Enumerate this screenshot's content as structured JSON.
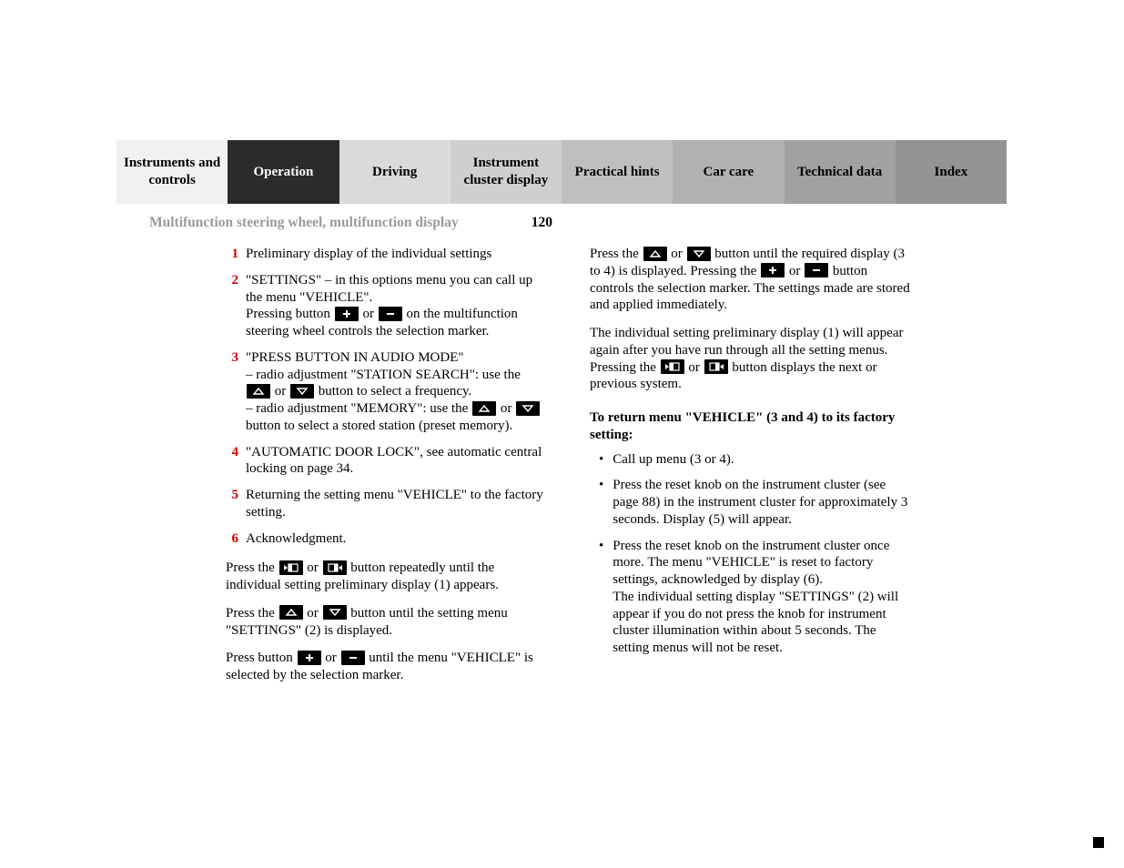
{
  "tabs": [
    {
      "label": "Instruments and controls",
      "bg": "#f1f1f1"
    },
    {
      "label": "Operation",
      "bg": "#2b2b2b",
      "text_color": "#ffffff"
    },
    {
      "label": "Driving",
      "bg": "#dadada"
    },
    {
      "label": "Instrument cluster display",
      "bg": "#cfcfcf"
    },
    {
      "label": "Practical hints",
      "bg": "#bfbfbf"
    },
    {
      "label": "Car care",
      "bg": "#b1b1b1"
    },
    {
      "label": "Technical data",
      "bg": "#a1a1a1"
    },
    {
      "label": "Index",
      "bg": "#949494"
    }
  ],
  "section_title": "Multifunction steering wheel, multifunction display",
  "page_number": "120",
  "accent_color": "#d40000",
  "left_list": [
    {
      "n": "1",
      "body": "Preliminary display of the individual settings"
    },
    {
      "n": "2",
      "body_html": "\"SETTINGS\" – in this options menu you can call up the menu \"VEHICLE\".<br>Pressing button {plus} or {minus} on the multifunction steering wheel controls the selection marker."
    },
    {
      "n": "3",
      "body_html": "\"PRESS BUTTON IN AUDIO MODE\"<br>– radio adjustment \"STATION SEARCH\": use the {up} or {down} button to select a frequency.<br>– radio adjustment \"MEMORY\": use the {up} or {down} button to select a stored station (preset memory)."
    },
    {
      "n": "4",
      "body": "\"AUTOMATIC DOOR LOCK\", see automatic central locking on page 34."
    },
    {
      "n": "5",
      "body": "Returning the setting menu \"VEHICLE\" to the factory setting."
    },
    {
      "n": "6",
      "body": "Acknowledgment."
    }
  ],
  "left_paras": [
    "Press the {prev} or {next} button repeatedly until the individual setting preliminary display (1) appears.",
    "Press the {up} or {down} button until the setting menu \"SETTINGS\" (2) is displayed.",
    "Press button {plus} or {minus} until the menu \"VEHICLE\" is selected by the selection marker."
  ],
  "right_paras": [
    "Press the {up} or {down} button until the required display (3 to 4) is displayed. Pressing the {plus} or {minus} button controls the selection marker. The settings made are stored and applied immediately.",
    "The individual setting preliminary display (1) will appear again after you have run through all the setting menus. Pressing the {prev} or {next} button displays the next or previous system."
  ],
  "right_bold": "To return menu \"VEHICLE\" (3 and 4) to its factory setting:",
  "right_bullets": [
    "Call up menu (3 or 4).",
    "Press the reset knob on the instrument cluster (see page 88) in the instrument cluster for approximately 3 seconds. Display (5) will appear.",
    "Press the reset knob on the instrument cluster once more. The menu \"VEHICLE\"  is reset to factory settings, acknowledged by display (6).\nThe individual setting display \"SETTINGS\" (2) will appear if you do not press the knob for instrument cluster illumination within about 5 seconds. The setting menus will not be reset."
  ],
  "icons": {
    "plus": "plus-icon",
    "minus": "minus-icon",
    "up": "up-icon",
    "down": "down-icon",
    "prev": "page-prev-icon",
    "next": "page-next-icon"
  }
}
